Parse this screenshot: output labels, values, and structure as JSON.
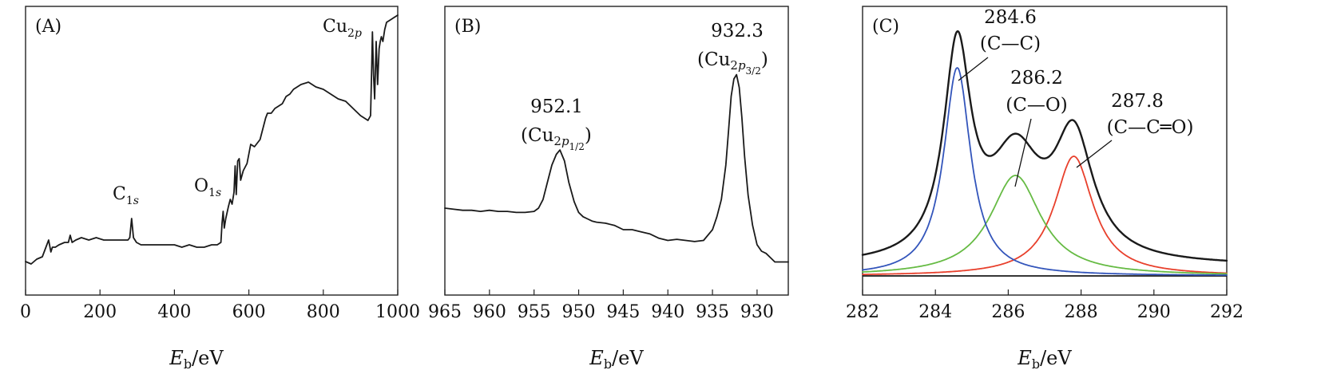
{
  "chart_data": [
    {
      "panel": "(A)",
      "type": "line",
      "xlabel": "E_b/eV",
      "xlim": [
        0,
        1000
      ],
      "xticks": [
        0,
        200,
        400,
        600,
        800,
        1000
      ],
      "ylabel": "",
      "grid": false,
      "annotations": [
        {
          "name": "C1s",
          "x": 285
        },
        {
          "name": "O1s",
          "x": 531
        },
        {
          "name": "Cu2p",
          "x": 935
        }
      ],
      "series": [
        {
          "color": "#1a1a1a",
          "x": [
            0,
            15,
            30,
            45,
            62,
            68,
            72,
            80,
            90,
            105,
            115,
            120,
            125,
            135,
            150,
            170,
            190,
            210,
            230,
            250,
            265,
            275,
            280,
            285,
            290,
            298,
            310,
            330,
            350,
            380,
            400,
            420,
            440,
            460,
            480,
            500,
            515,
            525,
            528,
            531,
            534,
            538,
            545,
            550,
            555,
            560,
            563,
            566,
            570,
            574,
            578,
            585,
            595,
            605,
            615,
            630,
            645,
            650,
            660,
            670,
            680,
            690,
            700,
            710,
            720,
            740,
            760,
            780,
            800,
            820,
            840,
            860,
            880,
            900,
            910,
            920,
            927,
            930,
            932,
            935,
            938,
            942,
            946,
            950,
            953,
            956,
            960,
            965,
            970,
            980,
            990,
            1000
          ],
          "y": [
            0.04,
            0.03,
            0.05,
            0.06,
            0.13,
            0.08,
            0.1,
            0.1,
            0.11,
            0.12,
            0.12,
            0.15,
            0.12,
            0.13,
            0.14,
            0.13,
            0.14,
            0.13,
            0.13,
            0.13,
            0.13,
            0.13,
            0.14,
            0.22,
            0.14,
            0.12,
            0.11,
            0.11,
            0.11,
            0.11,
            0.11,
            0.1,
            0.11,
            0.1,
            0.1,
            0.11,
            0.11,
            0.12,
            0.2,
            0.25,
            0.18,
            0.22,
            0.27,
            0.3,
            0.28,
            0.33,
            0.44,
            0.32,
            0.46,
            0.47,
            0.38,
            0.42,
            0.45,
            0.53,
            0.52,
            0.55,
            0.64,
            0.66,
            0.66,
            0.68,
            0.69,
            0.7,
            0.73,
            0.74,
            0.76,
            0.78,
            0.79,
            0.77,
            0.76,
            0.74,
            0.72,
            0.71,
            0.68,
            0.65,
            0.64,
            0.63,
            0.65,
            0.85,
            1.0,
            0.82,
            0.72,
            0.96,
            0.78,
            0.93,
            0.96,
            0.98,
            0.96,
            1.01,
            1.04,
            1.05,
            1.06,
            1.07
          ]
        }
      ]
    },
    {
      "panel": "(B)",
      "type": "line",
      "xlabel": "E_b/eV",
      "xlim": [
        965,
        926.5
      ],
      "xticks": [
        965,
        960,
        955,
        950,
        945,
        940,
        935,
        930
      ],
      "reversed_x": true,
      "ylabel": "",
      "grid": false,
      "annotations": [
        {
          "value": "952.1",
          "label": "Cu2p1/2",
          "x": 952.1
        },
        {
          "value": "932.3",
          "label": "Cu2p3/2",
          "x": 932.3
        }
      ],
      "series": [
        {
          "color": "#1a1a1a",
          "x": [
            965,
            964,
            963,
            962,
            961,
            960,
            959,
            958,
            957,
            956,
            955,
            954.5,
            954,
            953.5,
            953,
            952.5,
            952.1,
            951.6,
            951.1,
            950.5,
            950,
            949.5,
            949,
            948.5,
            948,
            947,
            946,
            945,
            944,
            943,
            942,
            941,
            940,
            939,
            938,
            937,
            936,
            935,
            934.5,
            934,
            933.5,
            933.2,
            932.9,
            932.6,
            932.3,
            932,
            931.7,
            931.4,
            931,
            930.5,
            930,
            929.5,
            929,
            928.5,
            928,
            927,
            926.5
          ],
          "y": [
            0.3,
            0.295,
            0.29,
            0.29,
            0.285,
            0.29,
            0.285,
            0.285,
            0.28,
            0.28,
            0.285,
            0.3,
            0.34,
            0.42,
            0.5,
            0.55,
            0.57,
            0.52,
            0.42,
            0.33,
            0.28,
            0.26,
            0.25,
            0.24,
            0.235,
            0.23,
            0.22,
            0.2,
            0.2,
            0.19,
            0.18,
            0.16,
            0.15,
            0.155,
            0.15,
            0.145,
            0.15,
            0.2,
            0.26,
            0.34,
            0.5,
            0.66,
            0.82,
            0.9,
            0.92,
            0.86,
            0.72,
            0.54,
            0.36,
            0.22,
            0.13,
            0.1,
            0.09,
            0.07,
            0.05,
            0.05,
            0.05
          ]
        }
      ]
    },
    {
      "panel": "(C)",
      "type": "line",
      "xlabel": "E_b/eV",
      "xlim": [
        282,
        292
      ],
      "xticks": [
        282,
        284,
        286,
        288,
        290,
        292
      ],
      "ylabel": "",
      "grid": false,
      "peaks": [
        {
          "position": 284.6,
          "bond": "C—C",
          "color": "#3355bb",
          "amplitude": 0.87,
          "width": 0.45
        },
        {
          "position": 286.2,
          "bond": "C—O",
          "color": "#66bb44",
          "amplitude": 0.42,
          "width": 0.85
        },
        {
          "position": 287.8,
          "bond": "C—C═O",
          "color": "#e8402c",
          "amplitude": 0.5,
          "width": 0.65
        }
      ],
      "series": [
        {
          "color": "#1a1a1a",
          "role": "envelope"
        },
        {
          "color": "#3355bb",
          "role": "component"
        },
        {
          "color": "#66bb44",
          "role": "component"
        },
        {
          "color": "#e8402c",
          "role": "component"
        }
      ]
    }
  ]
}
